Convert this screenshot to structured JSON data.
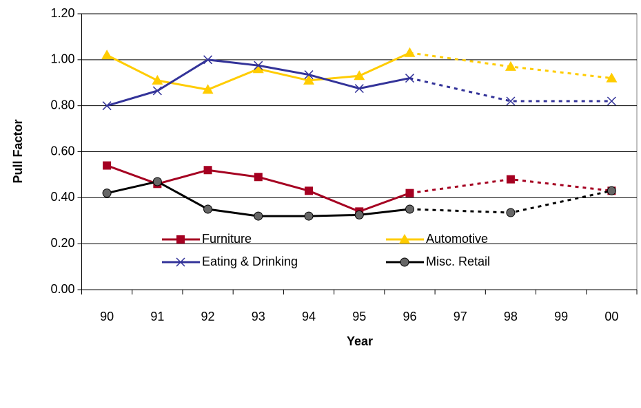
{
  "chart_data": {
    "type": "line",
    "x_label": "Year",
    "y_label": "Pull Factor",
    "categories": [
      "90",
      "91",
      "92",
      "93",
      "94",
      "95",
      "96",
      "97",
      "98",
      "99",
      "00"
    ],
    "projection_from": "96",
    "series": [
      {
        "name": "Furniture",
        "color": "#a50021",
        "marker": "square",
        "values": [
          0.54,
          0.46,
          0.52,
          0.49,
          0.43,
          0.34,
          0.42,
          null,
          0.48,
          null,
          0.43
        ]
      },
      {
        "name": "Automotive",
        "color": "#ffcc00",
        "marker": "triangle",
        "values": [
          1.02,
          0.91,
          0.87,
          0.96,
          0.91,
          0.93,
          1.03,
          null,
          0.97,
          null,
          0.92
        ]
      },
      {
        "name": "Eating & Drinking",
        "color": "#333399",
        "marker": "x",
        "values": [
          0.8,
          0.865,
          1.0,
          0.975,
          0.935,
          0.875,
          0.92,
          null,
          0.82,
          null,
          0.82
        ]
      },
      {
        "name": "Misc. Retail",
        "color": "#000000",
        "marker": "circle",
        "values": [
          0.42,
          0.47,
          0.35,
          0.32,
          0.32,
          0.325,
          0.35,
          null,
          0.335,
          null,
          0.43
        ]
      }
    ],
    "ylim": [
      0,
      1.2
    ],
    "yticks": [
      {
        "value": 0,
        "label": "0.00"
      },
      {
        "value": 0.2,
        "label": "0.20"
      },
      {
        "value": 0.4,
        "label": "0.40"
      },
      {
        "value": 0.6,
        "label": "0.60"
      },
      {
        "value": 0.8,
        "label": "0.80"
      },
      {
        "value": 1.0,
        "label": "1.00"
      },
      {
        "value": 1.2,
        "label": "1.20"
      }
    ],
    "grid": true,
    "legend": "bottom"
  }
}
